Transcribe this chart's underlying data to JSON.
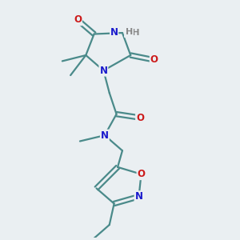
{
  "background_color": "#eaeff2",
  "bond_color": "#4a8a8a",
  "nitrogen_color": "#1a1acc",
  "oxygen_color": "#cc1a1a",
  "hydrogen_color": "#888888",
  "line_width": 1.6,
  "font_size_atom": 8.5,
  "fig_width": 3.0,
  "fig_height": 3.0,
  "xlim": [
    0,
    10
  ],
  "ylim": [
    0,
    10
  ]
}
